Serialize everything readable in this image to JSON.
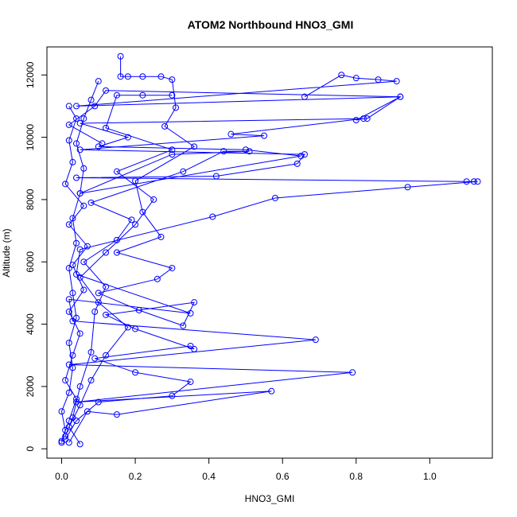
{
  "chart_data": {
    "type": "line",
    "title": "ATOM2 Northbound HNO3_GMI",
    "xlabel": "HNO3_GMI",
    "ylabel": "Altitude (m)",
    "xlim": [
      -0.04,
      1.17
    ],
    "ylim": [
      -300,
      12900
    ],
    "x_ticks": [
      0.0,
      0.2,
      0.4,
      0.6,
      0.8,
      1.0
    ],
    "x_tick_labels": [
      "0.0",
      "0.2",
      "0.4",
      "0.6",
      "0.8",
      "1.0"
    ],
    "y_ticks": [
      0,
      2000,
      4000,
      6000,
      8000,
      10000,
      12000
    ],
    "y_tick_labels": [
      "0",
      "2000",
      "4000",
      "6000",
      "8000",
      "10000",
      "12000"
    ],
    "grid": false,
    "marker": "open-circle",
    "series_color": "#0000ff",
    "series": [
      {
        "values": [
          [
            0.0,
            200
          ],
          [
            0.01,
            600
          ],
          [
            0.0,
            1200
          ],
          [
            0.02,
            1800
          ],
          [
            0.03,
            2600
          ],
          [
            0.02,
            3400
          ],
          [
            0.04,
            4200
          ],
          [
            0.03,
            5000
          ],
          [
            0.02,
            5800
          ],
          [
            0.04,
            6600
          ],
          [
            0.03,
            7400
          ],
          [
            0.05,
            8200
          ],
          [
            0.06,
            9000
          ],
          [
            0.04,
            9800
          ],
          [
            0.06,
            10600
          ],
          [
            0.08,
            11200
          ],
          [
            0.1,
            11800
          ]
        ]
      },
      {
        "values": [
          [
            0.05,
            150
          ],
          [
            0.02,
            700
          ],
          [
            0.05,
            1400
          ],
          [
            0.08,
            2200
          ],
          [
            0.12,
            3000
          ],
          [
            0.18,
            3900
          ],
          [
            0.1,
            4700
          ],
          [
            0.05,
            5500
          ],
          [
            0.12,
            6300
          ],
          [
            0.2,
            7200
          ],
          [
            0.25,
            8000
          ],
          [
            0.15,
            8900
          ],
          [
            0.3,
            9600
          ],
          [
            0.12,
            10300
          ],
          [
            0.15,
            11350
          ],
          [
            0.22,
            11350
          ],
          [
            0.3,
            11350
          ]
        ]
      },
      {
        "values": [
          [
            0.01,
            300
          ],
          [
            0.04,
            900
          ],
          [
            0.1,
            1500
          ],
          [
            0.3,
            1700
          ],
          [
            0.35,
            2150
          ],
          [
            0.2,
            2450
          ],
          [
            0.09,
            2900
          ],
          [
            0.35,
            3300
          ],
          [
            0.36,
            3200
          ],
          [
            0.2,
            3850
          ],
          [
            0.12,
            4300
          ],
          [
            0.36,
            4700
          ],
          [
            0.33,
            3950
          ],
          [
            0.21,
            4450
          ],
          [
            0.1,
            5000
          ],
          [
            0.26,
            5450
          ],
          [
            0.3,
            5800
          ],
          [
            0.15,
            6300
          ],
          [
            0.27,
            6800
          ],
          [
            0.22,
            7600
          ],
          [
            0.2,
            8600
          ],
          [
            0.36,
            9700
          ],
          [
            0.28,
            10350
          ],
          [
            0.31,
            10950
          ],
          [
            0.3,
            11850
          ],
          [
            0.27,
            11950
          ],
          [
            0.22,
            11950
          ],
          [
            0.18,
            11950
          ],
          [
            0.16,
            11950
          ],
          [
            0.16,
            12600
          ]
        ]
      },
      {
        "values": [
          [
            0.02,
            200
          ],
          [
            0.07,
            1200
          ],
          [
            0.15,
            1100
          ],
          [
            0.57,
            1850
          ],
          [
            0.04,
            1500
          ],
          [
            0.79,
            2450
          ],
          [
            0.02,
            2700
          ],
          [
            0.69,
            3500
          ],
          [
            0.03,
            4100
          ],
          [
            0.02,
            4800
          ],
          [
            0.35,
            4350
          ],
          [
            0.04,
            5600
          ],
          [
            0.05,
            6400
          ],
          [
            0.41,
            7450
          ],
          [
            0.58,
            8050
          ],
          [
            0.94,
            8400
          ],
          [
            1.13,
            8580
          ],
          [
            1.12,
            8580
          ],
          [
            1.1,
            8580
          ],
          [
            0.04,
            8700
          ],
          [
            0.42,
            8750
          ],
          [
            0.64,
            9150
          ],
          [
            0.66,
            9450
          ],
          [
            0.05,
            9600
          ],
          [
            0.55,
            10050
          ],
          [
            0.46,
            10100
          ],
          [
            0.82,
            10600
          ],
          [
            0.8,
            10550
          ],
          [
            0.92,
            11300
          ],
          [
            0.04,
            11000
          ],
          [
            0.91,
            11800
          ],
          [
            0.86,
            11850
          ],
          [
            0.8,
            11900
          ],
          [
            0.76,
            12000
          ],
          [
            0.66,
            11300
          ]
        ]
      },
      {
        "values": [
          [
            0.01,
            400
          ],
          [
            0.03,
            1000
          ],
          [
            0.05,
            2000
          ],
          [
            0.08,
            3100
          ],
          [
            0.09,
            4400
          ],
          [
            0.12,
            5200
          ],
          [
            0.06,
            6000
          ],
          [
            0.15,
            6700
          ],
          [
            0.19,
            7350
          ],
          [
            0.08,
            7900
          ],
          [
            0.33,
            8900
          ],
          [
            0.44,
            9550
          ],
          [
            0.51,
            9550
          ],
          [
            0.3,
            9450
          ],
          [
            0.05,
            8200
          ],
          [
            0.65,
            9400
          ],
          [
            0.5,
            9600
          ],
          [
            0.1,
            9700
          ],
          [
            0.18,
            10000
          ],
          [
            0.05,
            10450
          ],
          [
            0.83,
            10600
          ],
          [
            0.92,
            11300
          ],
          [
            0.12,
            11500
          ],
          [
            0.09,
            11000
          ],
          [
            0.02,
            10400
          ],
          [
            0.11,
            9800
          ]
        ]
      },
      {
        "values": [
          [
            0.0,
            250
          ],
          [
            0.02,
            900
          ],
          [
            0.04,
            1600
          ],
          [
            0.01,
            2200
          ],
          [
            0.03,
            3000
          ],
          [
            0.05,
            3700
          ],
          [
            0.02,
            4400
          ],
          [
            0.06,
            5100
          ],
          [
            0.03,
            5900
          ],
          [
            0.07,
            6500
          ],
          [
            0.02,
            7200
          ],
          [
            0.06,
            7800
          ],
          [
            0.01,
            8500
          ],
          [
            0.03,
            9200
          ],
          [
            0.02,
            9900
          ],
          [
            0.04,
            10600
          ],
          [
            0.02,
            11000
          ]
        ]
      }
    ]
  }
}
